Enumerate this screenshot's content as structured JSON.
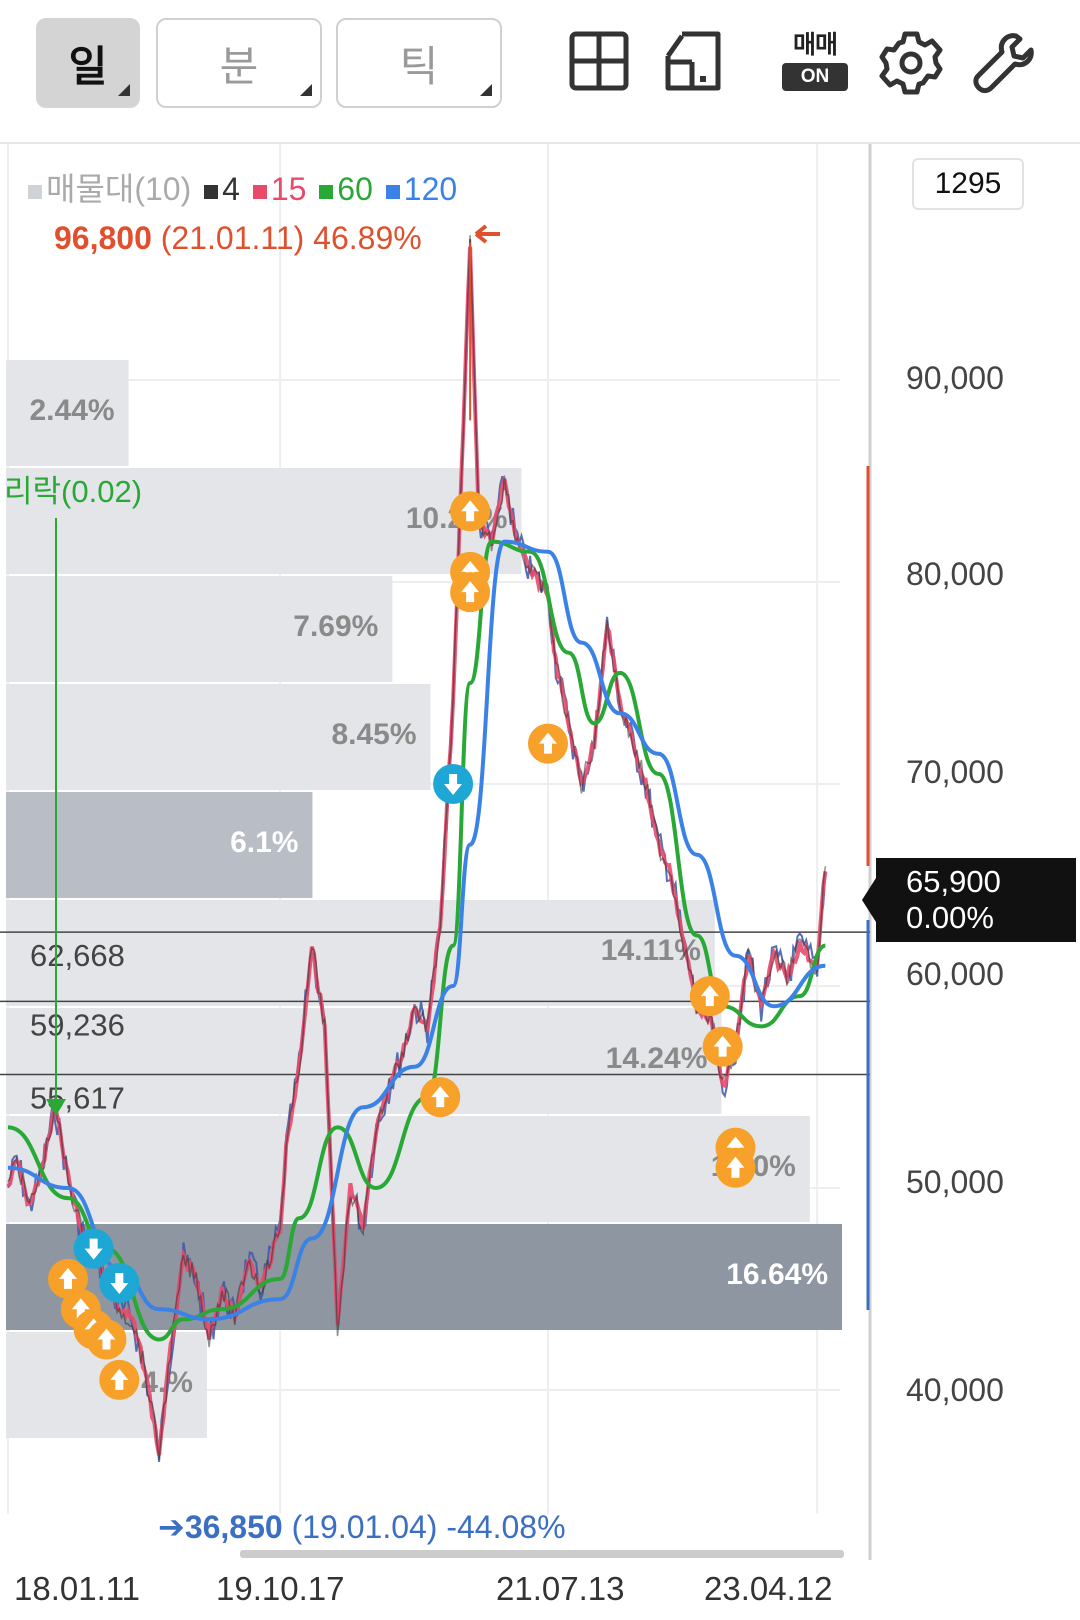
{
  "toolbar": {
    "period_day": "일",
    "period_minute": "분",
    "period_tick": "틱",
    "trade_label": "매매",
    "trade_state": "ON",
    "icons": [
      "grid-layout-icon",
      "split-layout-icon",
      "trade-on-icon",
      "gear-icon",
      "wrench-icon"
    ]
  },
  "count_box": "1295",
  "legend": {
    "volume_profile": "매물대(10)",
    "ma4": "4",
    "ma15": "15",
    "ma60": "60",
    "ma120": "120"
  },
  "high_label": {
    "price": "96,800",
    "date": "(21.01.11)",
    "pct": "46.89%"
  },
  "low_label": {
    "price": "36,850",
    "date": "(19.01.04)",
    "pct": "-44.08%"
  },
  "current_price": {
    "price": "65,900",
    "change": "0.00%"
  },
  "annotation": {
    "text": "리락(0.02)"
  },
  "colors": {
    "ma4": "#333333",
    "ma15": "#e84a6a",
    "ma60": "#2aa836",
    "ma120": "#3b82e6",
    "high": "#e0502e",
    "low": "#3a6fc4",
    "buy_marker": "#f7a02a",
    "sell_marker": "#1ea7d4",
    "profile_bar": "#e3e5e8",
    "profile_bar_mid": "#b9bec6",
    "profile_bar_max": "#8d96a1"
  },
  "chart_data": {
    "type": "line",
    "title": "",
    "x_ticks": [
      "18.01.11",
      "19.10.17",
      "21.07.13",
      "23.04.12"
    ],
    "y_ticks": [
      "40,000",
      "50,000",
      "60,000",
      "70,000",
      "80,000",
      "90,000"
    ],
    "y_tick_values": [
      40000,
      50000,
      60000,
      70000,
      80000,
      90000
    ],
    "ylim": [
      35400,
      98500
    ],
    "grid": true,
    "price_path": [
      [
        "18.01.11",
        50000
      ],
      [
        "18.02",
        51500
      ],
      [
        "18.03",
        49000
      ],
      [
        "18.04",
        51000
      ],
      [
        "18.05",
        54000
      ],
      [
        "18.06",
        50500
      ],
      [
        "18.07",
        48000
      ],
      [
        "18.08",
        47000
      ],
      [
        "18.09",
        45500
      ],
      [
        "18.10",
        44000
      ],
      [
        "18.11",
        43500
      ],
      [
        "18.12",
        41000
      ],
      [
        "19.01.04",
        36850
      ],
      [
        "19.02",
        42000
      ],
      [
        "19.03",
        46500
      ],
      [
        "19.04",
        45500
      ],
      [
        "19.05",
        42500
      ],
      [
        "19.06",
        45000
      ],
      [
        "19.07",
        43500
      ],
      [
        "19.08",
        46500
      ],
      [
        "19.09",
        45000
      ],
      [
        "19.10.17",
        48000
      ],
      [
        "19.11",
        52000
      ],
      [
        "19.12",
        56000
      ],
      [
        "20.01",
        62000
      ],
      [
        "20.02",
        58000
      ],
      [
        "20.03",
        43000
      ],
      [
        "20.04",
        50000
      ],
      [
        "20.05",
        48000
      ],
      [
        "20.06",
        53000
      ],
      [
        "20.07",
        55000
      ],
      [
        "20.08",
        56500
      ],
      [
        "20.09",
        59000
      ],
      [
        "20.10",
        58000
      ],
      [
        "20.11",
        63000
      ],
      [
        "20.12",
        74000
      ],
      [
        "21.01.11",
        96800
      ],
      [
        "21.02",
        83000
      ],
      [
        "21.03",
        82000
      ],
      [
        "21.04",
        85000
      ],
      [
        "21.05",
        82000
      ],
      [
        "21.06",
        80500
      ],
      [
        "21.07.13",
        79500
      ],
      [
        "21.08",
        76000
      ],
      [
        "21.09",
        73000
      ],
      [
        "21.10",
        70000
      ],
      [
        "21.11",
        72000
      ],
      [
        "21.12",
        78000
      ],
      [
        "22.01",
        74000
      ],
      [
        "22.02",
        72000
      ],
      [
        "22.03",
        70000
      ],
      [
        "22.04",
        67000
      ],
      [
        "22.05",
        65500
      ],
      [
        "22.06",
        62000
      ],
      [
        "22.07",
        59000
      ],
      [
        "22.08",
        58500
      ],
      [
        "22.09",
        55000
      ],
      [
        "22.10",
        57000
      ],
      [
        "22.11",
        61500
      ],
      [
        "22.12",
        59000
      ],
      [
        "23.01",
        61500
      ],
      [
        "23.02",
        60500
      ],
      [
        "23.03",
        62000
      ],
      [
        "23.04.12",
        61000
      ],
      [
        "23.05",
        65900
      ]
    ],
    "series": [
      {
        "name": "4",
        "color": "#333333"
      },
      {
        "name": "15",
        "color": "#e84a6a"
      },
      {
        "name": "60",
        "color": "#2aa836"
      },
      {
        "name": "120",
        "color": "#3b82e6"
      }
    ],
    "ma60_path": [
      [
        "18.01.11",
        53000
      ],
      [
        "18.06",
        49500
      ],
      [
        "18.09",
        47000
      ],
      [
        "19.01.04",
        42500
      ],
      [
        "19.03",
        43500
      ],
      [
        "19.06",
        44000
      ],
      [
        "19.10.17",
        45500
      ],
      [
        "19.12",
        48500
      ],
      [
        "20.03",
        53000
      ],
      [
        "20.06",
        50000
      ],
      [
        "20.10",
        54500
      ],
      [
        "20.12",
        62000
      ],
      [
        "21.01.11",
        75000
      ],
      [
        "21.03",
        82000
      ],
      [
        "21.06",
        81500
      ],
      [
        "21.09",
        76500
      ],
      [
        "21.11",
        73000
      ],
      [
        "22.01",
        75500
      ],
      [
        "22.04",
        70500
      ],
      [
        "22.07",
        62500
      ],
      [
        "22.09",
        59000
      ],
      [
        "22.12",
        58000
      ],
      [
        "23.03",
        59500
      ],
      [
        "23.05",
        62000
      ]
    ],
    "ma120_path": [
      [
        "18.01.11",
        51000
      ],
      [
        "18.06",
        50000
      ],
      [
        "18.10",
        46000
      ],
      [
        "19.01.04",
        44000
      ],
      [
        "19.05",
        43500
      ],
      [
        "19.10.17",
        44500
      ],
      [
        "20.01",
        47500
      ],
      [
        "20.05",
        54000
      ],
      [
        "20.09",
        56000
      ],
      [
        "20.12",
        60000
      ],
      [
        "21.01.11",
        67000
      ],
      [
        "21.04",
        82000
      ],
      [
        "21.07.13",
        81500
      ],
      [
        "21.10",
        77000
      ],
      [
        "22.01",
        73500
      ],
      [
        "22.04",
        71500
      ],
      [
        "22.07",
        66500
      ],
      [
        "22.10",
        61500
      ],
      [
        "23.01",
        59000
      ],
      [
        "23.05",
        61000
      ]
    ],
    "volume_profile": [
      {
        "pct": "2.44%",
        "value": 2.44
      },
      {
        "pct": "10.26%",
        "value": 10.26
      },
      {
        "pct": "7.69%",
        "value": 7.69
      },
      {
        "pct": "8.45%",
        "value": 8.45
      },
      {
        "pct": "6.1%",
        "value": 6.1
      },
      {
        "pct": "14.11%",
        "value": 14.11
      },
      {
        "pct": "14.24%",
        "value": 14.24
      },
      {
        "pct": "16.0%",
        "value": 16.0
      },
      {
        "pct": "16.64%",
        "value": 16.64
      },
      {
        "pct": "4.%",
        "value": 4.0
      }
    ],
    "horizontal_lines": [
      {
        "label": "62,668",
        "value": 62668
      },
      {
        "label": "59,236",
        "value": 59236
      },
      {
        "label": "55,617",
        "value": 55617
      }
    ],
    "buy_markers": [
      [
        "21.01.11",
        83500
      ],
      [
        "21.01.11",
        80500
      ],
      [
        "21.01.11",
        79500
      ],
      [
        "21.07.13",
        72000
      ],
      [
        "20.11",
        54500
      ],
      [
        "22.08",
        59500
      ],
      [
        "22.09",
        57000
      ],
      [
        "22.10",
        52000
      ],
      [
        "22.10",
        51000
      ],
      [
        "18.06",
        45500
      ],
      [
        "18.07",
        44000
      ],
      [
        "18.08",
        43000
      ],
      [
        "18.09",
        42500
      ],
      [
        "18.10",
        40500
      ]
    ],
    "sell_markers": [
      [
        "20.12",
        70000
      ],
      [
        "18.08",
        47000
      ],
      [
        "18.10",
        45300
      ]
    ]
  }
}
